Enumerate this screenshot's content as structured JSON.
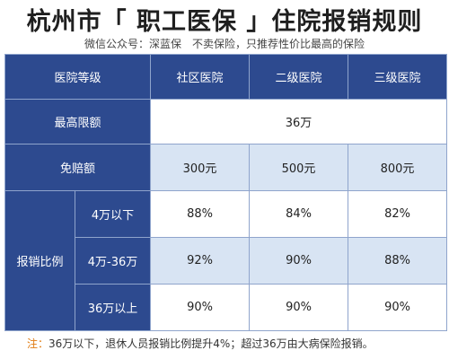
{
  "title": "杭州市「 职工医保 」住院报销规则",
  "subtitle": "微信公众号：深蓝保　不卖保险，只推荐性价比最高的保险",
  "table": {
    "header": {
      "label": "医院等级",
      "cols": [
        "社区医院",
        "二级医院",
        "三级医院"
      ]
    },
    "max_limit": {
      "label": "最高限额",
      "value": "36万"
    },
    "deductible": {
      "label": "免赔额",
      "values": [
        "300元",
        "500元",
        "800元"
      ]
    },
    "reimbursement": {
      "label": "报销比例",
      "rows": [
        {
          "range": "4万以下",
          "values": [
            "88%",
            "84%",
            "82%"
          ]
        },
        {
          "range": "4万-36万",
          "values": [
            "92%",
            "90%",
            "88%"
          ]
        },
        {
          "range": "36万以上",
          "values": [
            "90%",
            "90%",
            "90%"
          ]
        }
      ]
    }
  },
  "note": {
    "prefix": "注：",
    "text": "36万以下，退休人员报销比例提升4%；超过36万由大病保险报销。"
  },
  "colors": {
    "header_blue": "#2d4a8f",
    "light_blue": "#d8e4f3",
    "note_accent": "#e07a10"
  }
}
